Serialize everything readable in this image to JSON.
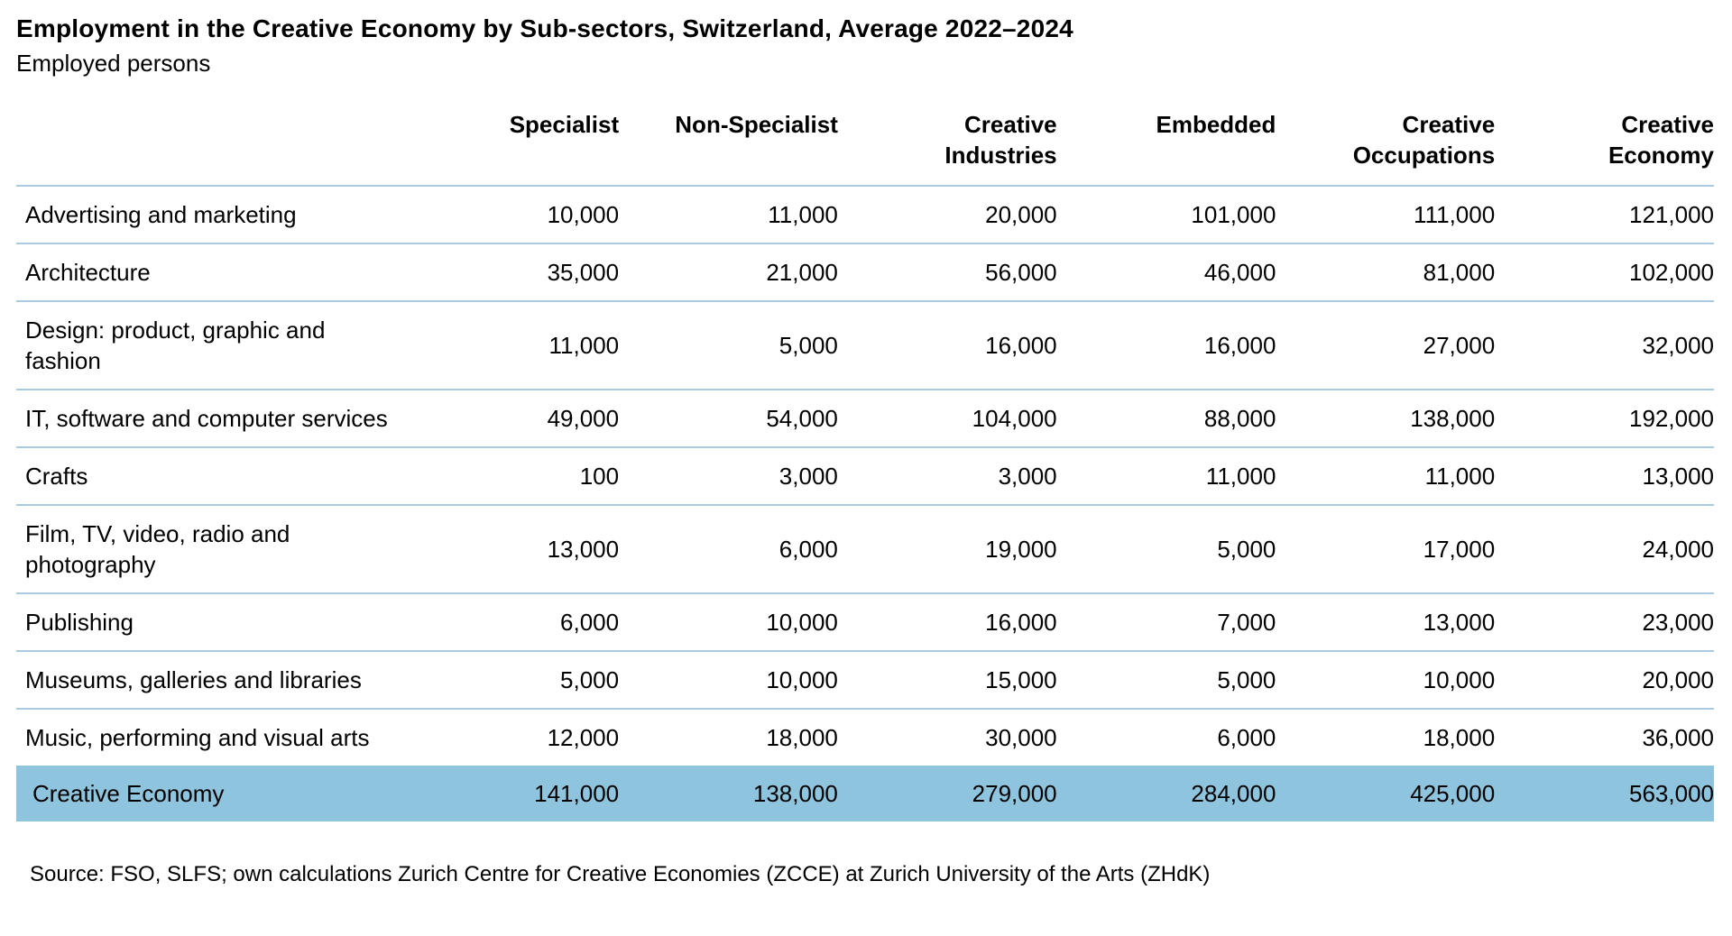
{
  "page": {
    "title": "Employment in the Creative Economy by Sub-sectors, Switzerland, Average 2022–2024",
    "subtitle": "Employed persons",
    "source": "Source: FSO, SLFS; own calculations Zurich Centre for Creative Economies (ZCCE) at Zurich University of the Arts (ZHdK)"
  },
  "colors": {
    "highlight_row_bg": "#8EC4DE",
    "row_separator": "#A8CCDF",
    "text": "#000000",
    "background": "#FFFFFF"
  },
  "chart_data": {
    "type": "table",
    "title": "Employment in the Creative Economy by Sub-sectors, Switzerland, Average 2022–2024",
    "subtitle": "Employed persons",
    "columns": [
      "Specialist",
      "Non-Specialist",
      "Creative Industries",
      "Embedded",
      "Creative Occupations",
      "Creative Economy"
    ],
    "rows": [
      {
        "label": "Advertising and marketing",
        "values": [
          "10,000",
          "11,000",
          "20,000",
          "101,000",
          "111,000",
          "121,000"
        ],
        "highlight": false
      },
      {
        "label": "Architecture",
        "values": [
          "35,000",
          "21,000",
          "56,000",
          "46,000",
          "81,000",
          "102,000"
        ],
        "highlight": false
      },
      {
        "label": "Design: product, graphic and fashion",
        "values": [
          "11,000",
          "5,000",
          "16,000",
          "16,000",
          "27,000",
          "32,000"
        ],
        "highlight": false
      },
      {
        "label": "IT, software and computer services",
        "values": [
          "49,000",
          "54,000",
          "104,000",
          "88,000",
          "138,000",
          "192,000"
        ],
        "highlight": false
      },
      {
        "label": "Crafts",
        "values": [
          "100",
          "3,000",
          "3,000",
          "11,000",
          "11,000",
          "13,000"
        ],
        "highlight": false
      },
      {
        "label": "Film, TV, video, radio and photography",
        "values": [
          "13,000",
          "6,000",
          "19,000",
          "5,000",
          "17,000",
          "24,000"
        ],
        "highlight": false
      },
      {
        "label": "Publishing",
        "values": [
          "6,000",
          "10,000",
          "16,000",
          "7,000",
          "13,000",
          "23,000"
        ],
        "highlight": false
      },
      {
        "label": "Museums, galleries and libraries",
        "values": [
          "5,000",
          "10,000",
          "15,000",
          "5,000",
          "10,000",
          "20,000"
        ],
        "highlight": false
      },
      {
        "label": "Music, performing and visual arts",
        "values": [
          "12,000",
          "18,000",
          "30,000",
          "6,000",
          "18,000",
          "36,000"
        ],
        "highlight": false
      },
      {
        "label": "Creative Economy",
        "values": [
          "141,000",
          "138,000",
          "279,000",
          "284,000",
          "425,000",
          "563,000"
        ],
        "highlight": true
      }
    ],
    "source": "Source: FSO, SLFS; own calculations Zurich Centre for Creative Economies (ZCCE) at Zurich University of the Arts (ZHdK)"
  }
}
